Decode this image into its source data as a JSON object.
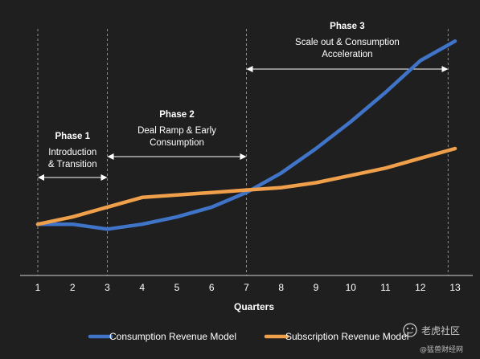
{
  "chart_data": {
    "type": "line",
    "x": [
      1,
      2,
      3,
      4,
      5,
      6,
      7,
      8,
      9,
      10,
      11,
      12,
      13
    ],
    "tick_labels": [
      "1",
      "2",
      "3",
      "4",
      "5",
      "6",
      "7",
      "8",
      "9",
      "10",
      "11",
      "12",
      "13"
    ],
    "xlabel": "Quarters",
    "ylabel": "",
    "ylim": [
      0,
      100
    ],
    "grid": false,
    "legend_position": "bottom",
    "series": [
      {
        "name": "Consumption Revenue Model",
        "color": "#3f74c8",
        "values": [
          20,
          20,
          18,
          20,
          23,
          27,
          33,
          41,
          51,
          62,
          74,
          87,
          95
        ]
      },
      {
        "name": "Subscription Revenue Model",
        "color": "#f0a04b",
        "values": [
          20,
          23,
          27,
          31,
          32,
          33,
          34,
          35,
          37,
          40,
          43,
          47,
          51
        ]
      }
    ],
    "phase_dividers_at": [
      1,
      3,
      7,
      12.8
    ],
    "phases": [
      {
        "title": "Phase 1",
        "description_lines": [
          "Introduction",
          "& Transition"
        ],
        "from": 1,
        "to": 3
      },
      {
        "title": "Phase 2",
        "description_lines": [
          "Deal Ramp & Early",
          "Consumption"
        ],
        "from": 3,
        "to": 7
      },
      {
        "title": "Phase 3",
        "description_lines": [
          "Scale out & Consumption",
          "Acceleration"
        ],
        "from": 7,
        "to": 12.8
      }
    ]
  },
  "colors": {
    "background": "#1f1f1f",
    "text": "#ffffff",
    "divider": "#8f8f8f",
    "axis": "#d0d0d0"
  },
  "watermark": {
    "text": "老虎社区",
    "subtext": "@猛兽财经网",
    "icon": "tiger-logo-icon"
  }
}
